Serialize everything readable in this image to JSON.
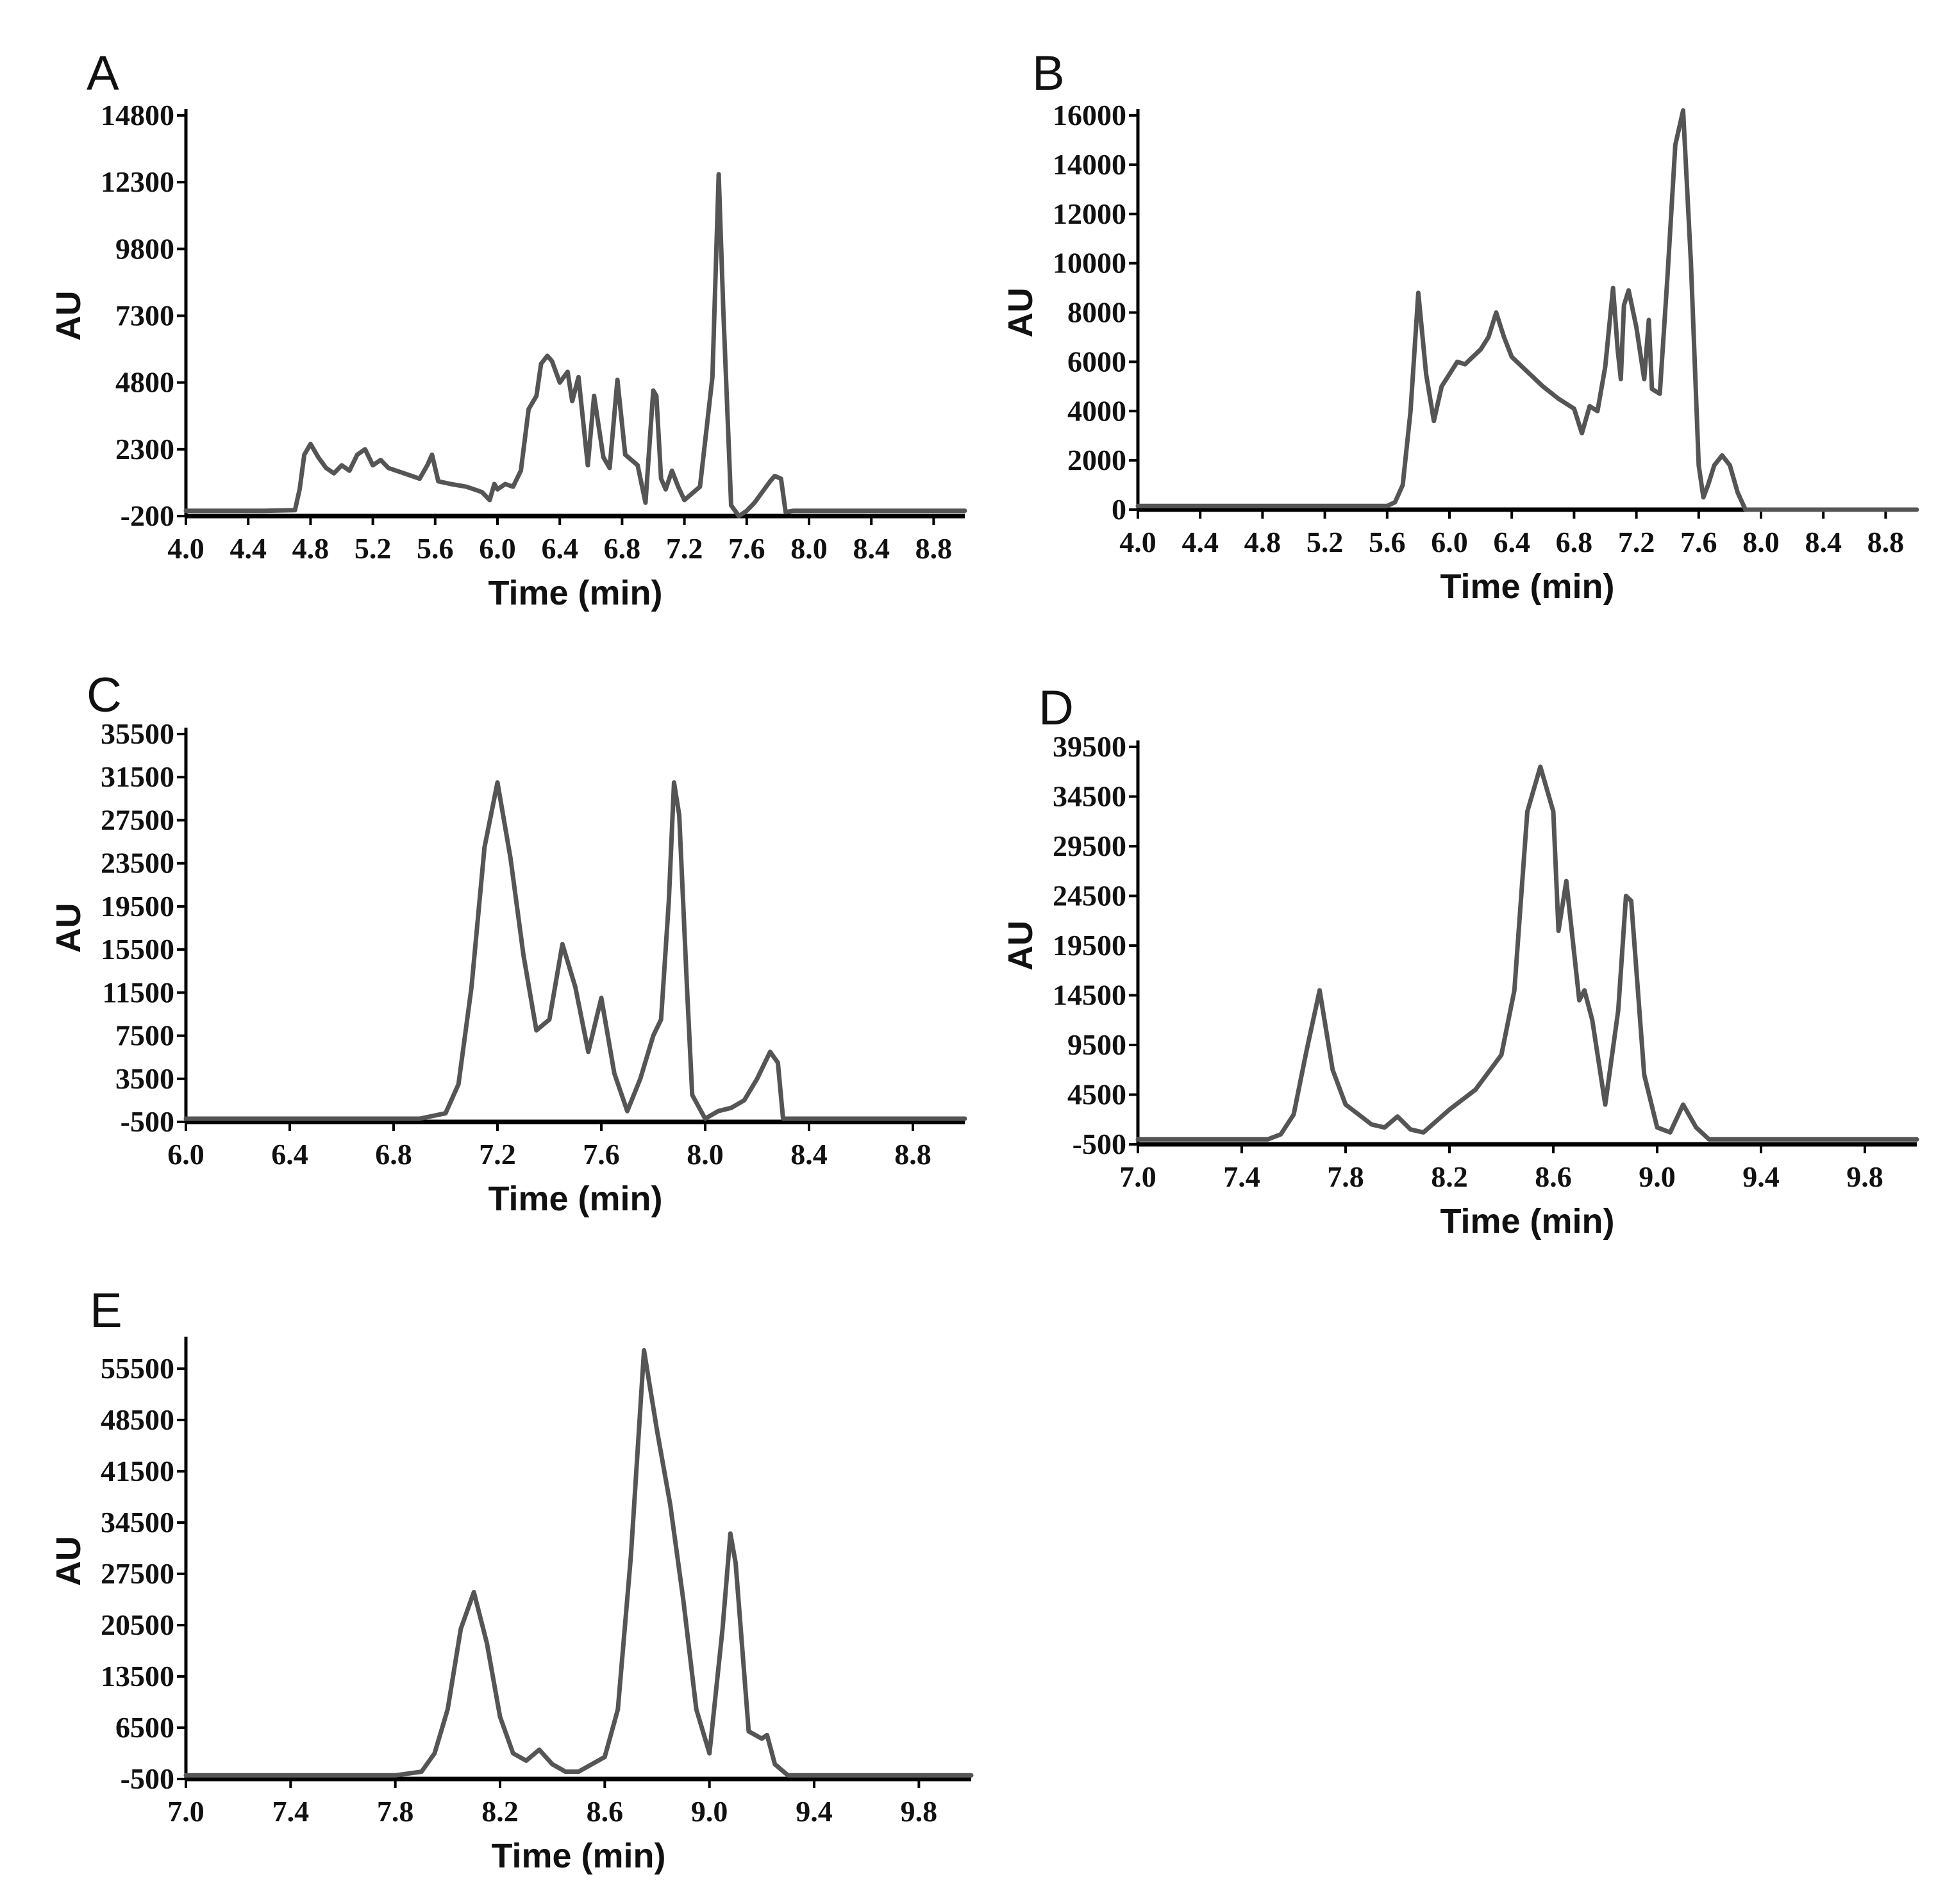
{
  "figure": {
    "background": "#ffffff",
    "line_color": "#555555",
    "axis_color": "#000000"
  },
  "chart_data": [
    {
      "panel": "A",
      "type": "line",
      "xlabel": "Time (min)",
      "ylabel": "AU",
      "xlim": [
        4.0,
        9.0
      ],
      "ylim": [
        -200,
        14800
      ],
      "xticks": [
        "4.0",
        "4.4",
        "4.8",
        "5.2",
        "5.6",
        "6.0",
        "6.4",
        "6.8",
        "7.2",
        "7.6",
        "8.0",
        "8.4",
        "8.8"
      ],
      "yticks": [
        "-200",
        "2300",
        "4800",
        "7300",
        "9800",
        "12300",
        "14800"
      ],
      "x": [
        4.0,
        4.5,
        4.7,
        4.73,
        4.76,
        4.8,
        4.85,
        4.9,
        4.95,
        5.0,
        5.05,
        5.1,
        5.15,
        5.2,
        5.25,
        5.3,
        5.4,
        5.5,
        5.55,
        5.58,
        5.62,
        5.7,
        5.8,
        5.9,
        5.95,
        5.98,
        6.0,
        6.05,
        6.1,
        6.15,
        6.2,
        6.25,
        6.28,
        6.32,
        6.35,
        6.4,
        6.45,
        6.48,
        6.52,
        6.58,
        6.62,
        6.68,
        6.72,
        6.77,
        6.82,
        6.9,
        6.95,
        7.0,
        7.02,
        7.05,
        7.08,
        7.12,
        7.16,
        7.2,
        7.3,
        7.38,
        7.42,
        7.45,
        7.5,
        7.55,
        7.6,
        7.65,
        7.7,
        7.75,
        7.78,
        7.82,
        7.85,
        7.9,
        8.3,
        8.6,
        9.0
      ],
      "y": [
        0,
        0,
        20,
        800,
        2100,
        2500,
        2000,
        1600,
        1400,
        1700,
        1500,
        2100,
        2300,
        1700,
        1900,
        1600,
        1400,
        1200,
        1700,
        2100,
        1100,
        1000,
        900,
        700,
        400,
        1000,
        800,
        1000,
        900,
        1500,
        3800,
        4300,
        5500,
        5800,
        5600,
        4800,
        5200,
        4100,
        5000,
        1700,
        4300,
        2000,
        1600,
        4900,
        2100,
        1700,
        300,
        4500,
        4300,
        1200,
        800,
        1500,
        900,
        400,
        900,
        5000,
        12600,
        7500,
        200,
        -200,
        0,
        300,
        700,
        1100,
        1300,
        1200,
        -50,
        0,
        0,
        0,
        0
      ]
    },
    {
      "panel": "B",
      "type": "line",
      "xlabel": "Time (min)",
      "ylabel": "AU",
      "xlim": [
        4.0,
        9.0
      ],
      "ylim": [
        0,
        16000
      ],
      "xticks": [
        "4.0",
        "4.4",
        "4.8",
        "5.2",
        "5.6",
        "6.0",
        "6.4",
        "6.8",
        "7.2",
        "7.6",
        "8.0",
        "8.4",
        "8.8"
      ],
      "yticks": [
        "0",
        "2000",
        "4000",
        "6000",
        "8000",
        "10000",
        "12000",
        "14000",
        "16000"
      ],
      "x": [
        4.0,
        5.6,
        5.65,
        5.7,
        5.75,
        5.8,
        5.85,
        5.9,
        5.95,
        6.0,
        6.05,
        6.1,
        6.15,
        6.2,
        6.25,
        6.3,
        6.35,
        6.4,
        6.5,
        6.6,
        6.7,
        6.8,
        6.85,
        6.9,
        6.95,
        7.0,
        7.05,
        7.08,
        7.1,
        7.12,
        7.15,
        7.2,
        7.25,
        7.28,
        7.3,
        7.35,
        7.4,
        7.45,
        7.5,
        7.55,
        7.6,
        7.63,
        7.66,
        7.7,
        7.75,
        7.8,
        7.85,
        7.9,
        8.0,
        9.0
      ],
      "y": [
        150,
        150,
        300,
        1000,
        4000,
        8800,
        5500,
        3600,
        5000,
        5500,
        6000,
        5900,
        6200,
        6500,
        7000,
        8000,
        7000,
        6200,
        5600,
        5000,
        4500,
        4100,
        3100,
        4200,
        4000,
        5800,
        9000,
        6500,
        5300,
        8300,
        8900,
        7400,
        5300,
        7700,
        4900,
        4700,
        9500,
        14800,
        16200,
        10000,
        1800,
        500,
        1000,
        1800,
        2200,
        1800,
        700,
        0,
        0,
        0
      ]
    },
    {
      "panel": "C",
      "type": "line",
      "xlabel": "Time (min)",
      "ylabel": "AU",
      "xlim": [
        6.0,
        9.0
      ],
      "ylim": [
        -500,
        35500
      ],
      "xticks": [
        "6.0",
        "6.4",
        "6.8",
        "7.2",
        "7.6",
        "8.0",
        "8.4",
        "8.8"
      ],
      "yticks": [
        "-500",
        "3500",
        "7500",
        "11500",
        "15500",
        "19500",
        "23500",
        "27500",
        "31500",
        "35500"
      ],
      "x": [
        6.0,
        6.9,
        7.0,
        7.05,
        7.1,
        7.15,
        7.2,
        7.25,
        7.3,
        7.35,
        7.4,
        7.45,
        7.5,
        7.55,
        7.6,
        7.65,
        7.7,
        7.75,
        7.8,
        7.83,
        7.86,
        7.88,
        7.9,
        7.93,
        7.95,
        8.0,
        8.05,
        8.1,
        8.15,
        8.2,
        8.25,
        8.28,
        8.3,
        8.35,
        9.0
      ],
      "y": [
        -200,
        -200,
        300,
        3000,
        12000,
        25000,
        31000,
        24000,
        15000,
        8000,
        9000,
        16000,
        12000,
        6000,
        11000,
        4000,
        500,
        3500,
        7500,
        9000,
        20000,
        31000,
        28000,
        12000,
        2000,
        -200,
        500,
        800,
        1500,
        3500,
        6000,
        5000,
        -200,
        -200,
        -200
      ]
    },
    {
      "panel": "D",
      "type": "line",
      "xlabel": "Time (min)",
      "ylabel": "AU",
      "xlim": [
        7.0,
        10.0
      ],
      "ylim": [
        -500,
        39500
      ],
      "xticks": [
        "7.0",
        "7.4",
        "7.8",
        "8.2",
        "8.6",
        "9.0",
        "9.4",
        "9.8"
      ],
      "yticks": [
        "-500",
        "4500",
        "9500",
        "14500",
        "19500",
        "24500",
        "29500",
        "34500",
        "39500"
      ],
      "x": [
        7.0,
        7.5,
        7.55,
        7.6,
        7.65,
        7.7,
        7.75,
        7.8,
        7.85,
        7.9,
        7.95,
        8.0,
        8.05,
        8.1,
        8.2,
        8.3,
        8.4,
        8.45,
        8.5,
        8.55,
        8.6,
        8.62,
        8.65,
        8.7,
        8.72,
        8.75,
        8.8,
        8.85,
        8.88,
        8.9,
        8.95,
        9.0,
        9.05,
        9.1,
        9.15,
        9.2,
        10.0
      ],
      "y": [
        0,
        0,
        500,
        2500,
        9000,
        15000,
        7000,
        3500,
        2500,
        1500,
        1200,
        2300,
        1000,
        700,
        3000,
        5000,
        8500,
        15000,
        33000,
        37500,
        33000,
        21000,
        26000,
        14000,
        15000,
        12000,
        3500,
        13000,
        24500,
        24000,
        6500,
        1200,
        700,
        3500,
        1200,
        0,
        0
      ]
    },
    {
      "panel": "E",
      "type": "line",
      "xlabel": "Time (min)",
      "ylabel": "AU",
      "xlim": [
        7.0,
        10.0
      ],
      "ylim": [
        -500,
        59000
      ],
      "xticks": [
        "7.0",
        "7.4",
        "7.8",
        "8.2",
        "8.6",
        "9.0",
        "9.4",
        "9.8"
      ],
      "yticks": [
        "-500",
        "6500",
        "13500",
        "20500",
        "27500",
        "34500",
        "41500",
        "48500",
        "55500"
      ],
      "x": [
        7.0,
        7.8,
        7.9,
        7.95,
        8.0,
        8.05,
        8.1,
        8.15,
        8.2,
        8.25,
        8.3,
        8.35,
        8.4,
        8.45,
        8.5,
        8.6,
        8.65,
        8.7,
        8.75,
        8.8,
        8.85,
        8.9,
        8.95,
        9.0,
        9.05,
        9.08,
        9.1,
        9.15,
        9.2,
        9.22,
        9.25,
        9.3,
        10.0
      ],
      "y": [
        0,
        0,
        500,
        3000,
        9000,
        20000,
        25000,
        18000,
        8000,
        3000,
        2000,
        3500,
        1500,
        500,
        500,
        2500,
        9000,
        30000,
        58000,
        47000,
        37000,
        24000,
        9000,
        3000,
        20000,
        33000,
        29000,
        6000,
        5000,
        5500,
        1500,
        0,
        0
      ]
    }
  ]
}
